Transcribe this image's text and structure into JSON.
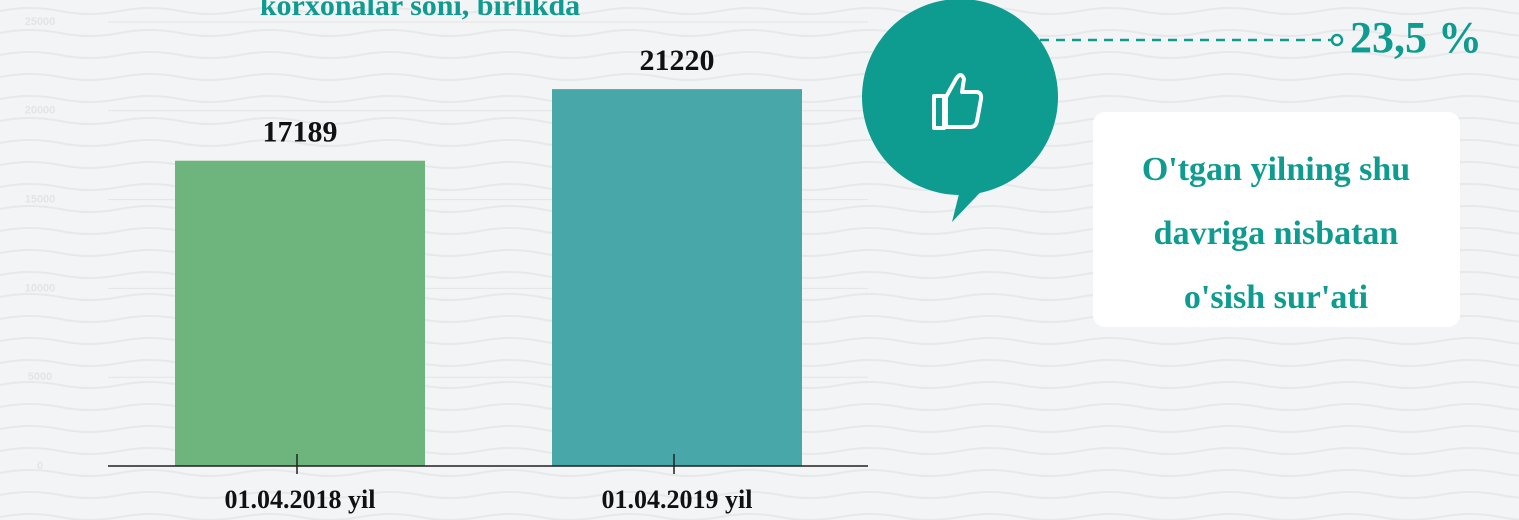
{
  "chart_data": {
    "type": "bar",
    "title": "korxonalar soni, birlikda",
    "categories": [
      "01.04.2018 yil",
      "01.04.2019 yil"
    ],
    "values": [
      17189,
      21220
    ],
    "colors": [
      "#6db57c",
      "#48a7a8"
    ],
    "ylim": [
      0,
      25000
    ],
    "yticks": [
      0,
      5000,
      10000,
      15000,
      20000,
      25000
    ],
    "grid": true,
    "annotations": {
      "growth": "23,5 %",
      "note": [
        "O'tgan yilning shu",
        "davriga nisbatan",
        "o'sish sur'ati"
      ]
    }
  }
}
